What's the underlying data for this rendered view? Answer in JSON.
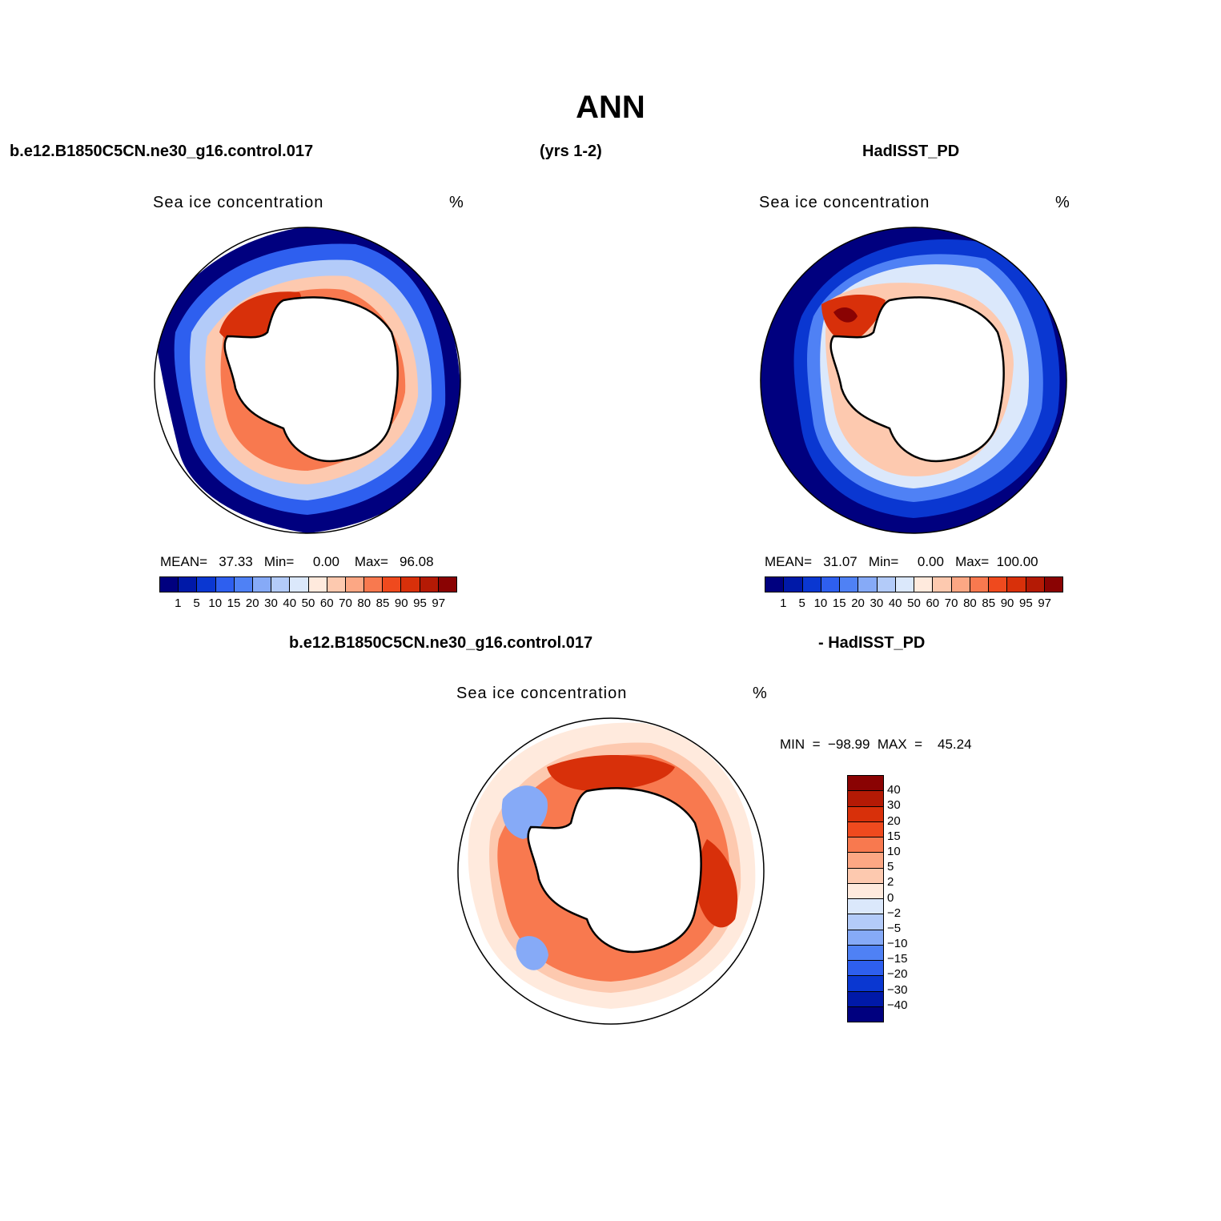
{
  "header": {
    "main_title": "ANN",
    "case_name": "b.e12.B1850C5CN.ne30_g16.control.017",
    "years": "(yrs 1-2)",
    "obs_name": "HadISST_PD",
    "diff_case": "b.e12.B1850C5CN.ne30_g16.control.017",
    "diff_obs": "- HadISST_PD"
  },
  "panels": {
    "model": {
      "title": "Sea ice concentration",
      "units": "%",
      "stats": "MEAN=   37.33   Min=     0.00    Max=   96.08"
    },
    "obs": {
      "title": "Sea ice concentration",
      "units": "%",
      "stats": "MEAN=   31.07   Min=     0.00   Max=  100.00"
    },
    "diff": {
      "title": "Sea ice concentration",
      "units": "%",
      "stats": "MIN  =  −98.99  MAX  =    45.24"
    }
  },
  "colorbar_abs": {
    "labels": [
      "1",
      "5",
      "10",
      "15",
      "20",
      "30",
      "40",
      "50",
      "60",
      "70",
      "80",
      "85",
      "90",
      "95",
      "97"
    ],
    "colors": [
      "#00007f",
      "#0019a8",
      "#0a37d1",
      "#2e5fef",
      "#4f81f5",
      "#86aaf7",
      "#b3cbf9",
      "#dbe8fb",
      "#ffeadd",
      "#fdc9af",
      "#fca784",
      "#f8794f",
      "#ef4a1e",
      "#d8300a",
      "#b41a05",
      "#8a0303"
    ]
  },
  "colorbar_diff": {
    "labels": [
      "40",
      "30",
      "20",
      "15",
      "10",
      "5",
      "2",
      "0",
      "−2",
      "−5",
      "−10",
      "−15",
      "−20",
      "−30",
      "−40"
    ],
    "colors": [
      "#8a0303",
      "#b41a05",
      "#d8300a",
      "#ef4a1e",
      "#f8794f",
      "#fca784",
      "#fdc9af",
      "#ffeadd",
      "#dbe8fb",
      "#b3cbf9",
      "#86aaf7",
      "#4f81f5",
      "#2e5fef",
      "#0a37d1",
      "#0019a8",
      "#00007f"
    ]
  },
  "icons": {
    "maps": "polar-stereographic-map",
    "continent": "antarctica-outline"
  }
}
